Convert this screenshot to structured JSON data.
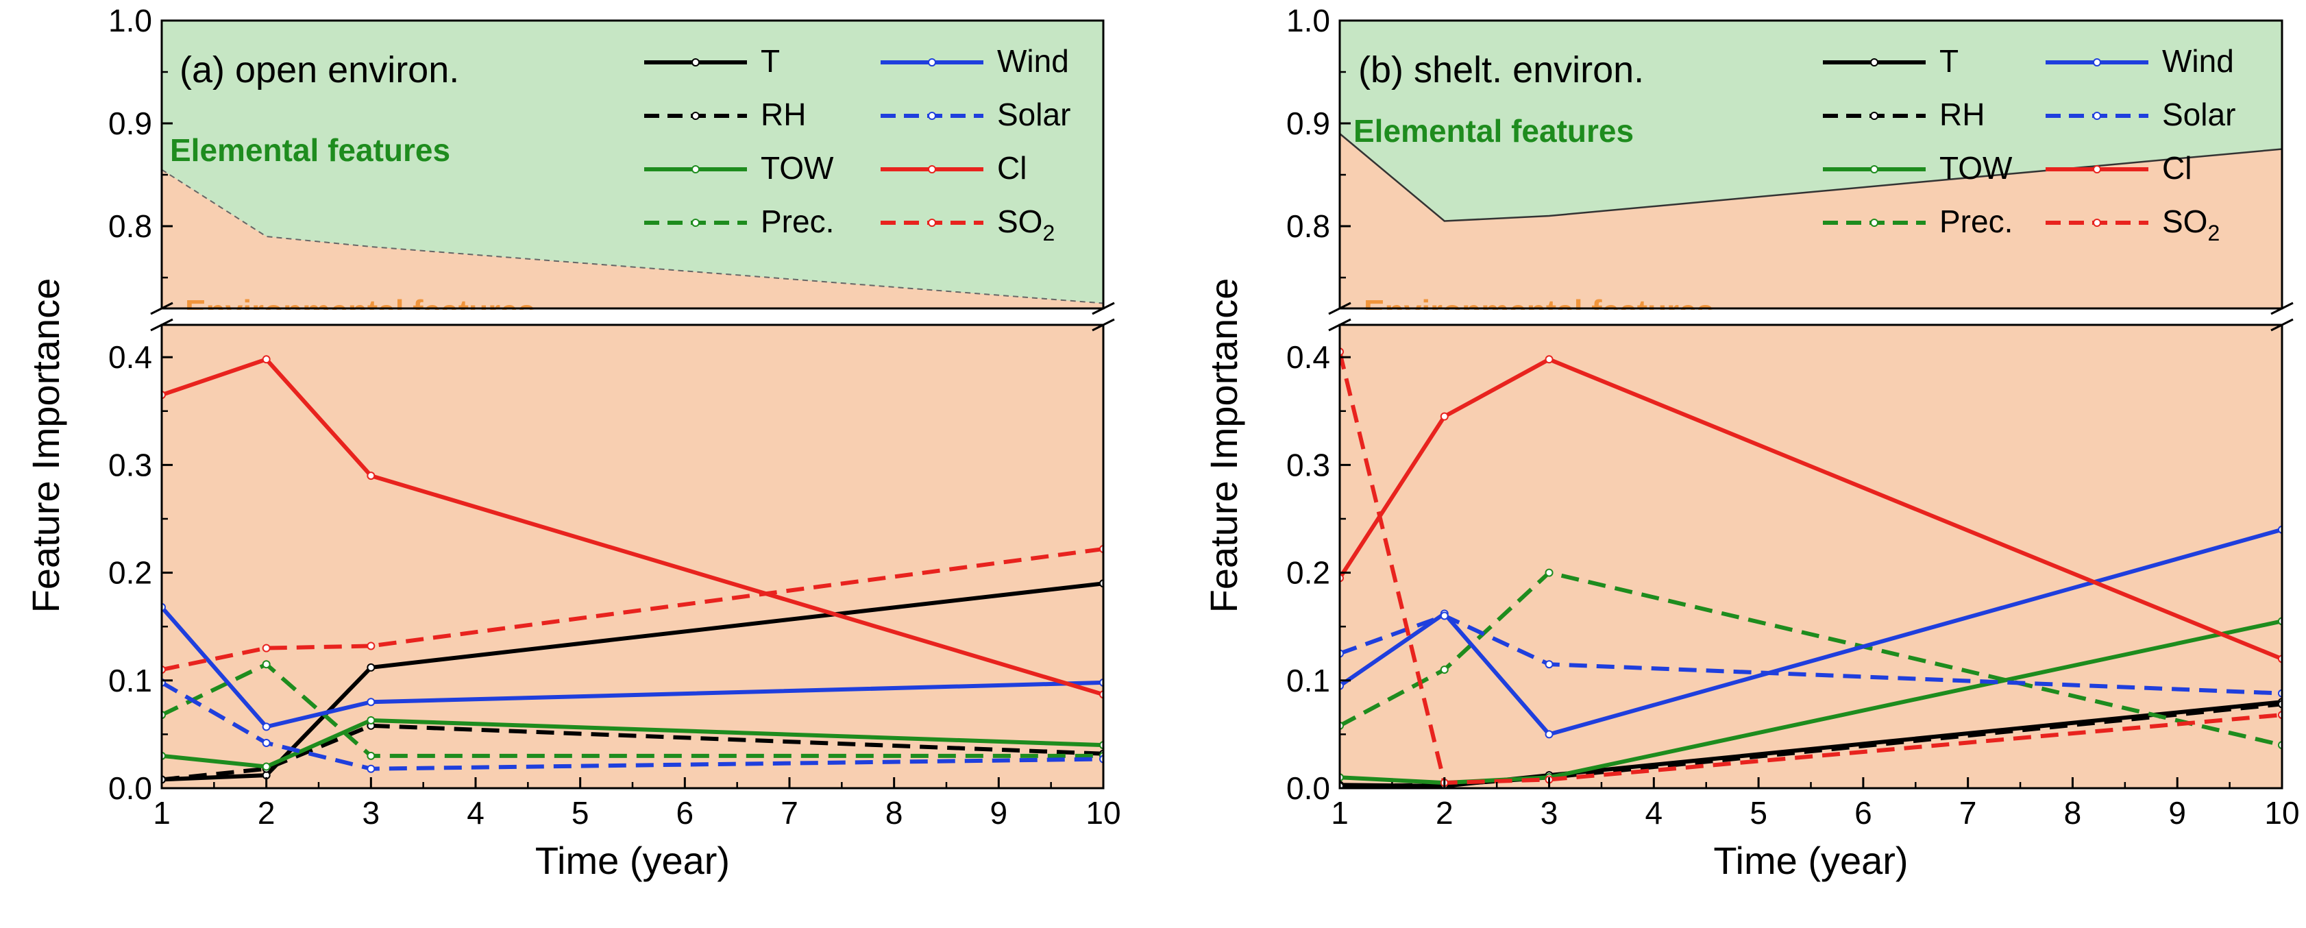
{
  "chart_data": [
    {
      "type": "line",
      "panel": "a",
      "title": "(a) open environ.",
      "xlabel": "Time (year)",
      "ylabel": "Feature Importance",
      "x": [
        1,
        2,
        3,
        10
      ],
      "xticks": [
        "1",
        "2",
        "3",
        "4",
        "5",
        "6",
        "7",
        "8",
        "9",
        "10"
      ],
      "lower_yticks": [
        "0.0",
        "0.1",
        "0.2",
        "0.3",
        "0.4"
      ],
      "upper_yticks": [
        "0.8",
        "0.9",
        "1.0"
      ],
      "lower_ylim": [
        0,
        0.43
      ],
      "upper_ylim": [
        0.72,
        1.0
      ],
      "regions": {
        "elemental": {
          "label": "Elemental features",
          "color": "#c6e6c4"
        },
        "environmental": {
          "label": "Environmental features",
          "color": "#f8cfb1"
        }
      },
      "boundary": {
        "x": [
          1,
          2,
          3,
          10
        ],
        "y": [
          0.855,
          0.79,
          0.78,
          0.725
        ],
        "style": "dashed"
      },
      "series": [
        {
          "name": "T",
          "color": "#000000",
          "dash": "solid",
          "values": [
            0.008,
            0.012,
            0.112,
            0.19
          ]
        },
        {
          "name": "RH",
          "color": "#000000",
          "dash": "dashed",
          "values": [
            0.008,
            0.018,
            0.058,
            0.032
          ]
        },
        {
          "name": "TOW",
          "color": "#1e8c1e",
          "dash": "solid",
          "values": [
            0.03,
            0.02,
            0.063,
            0.04
          ]
        },
        {
          "name": "Prec.",
          "color": "#1e8c1e",
          "dash": "dashed",
          "values": [
            0.068,
            0.115,
            0.03,
            0.03
          ]
        },
        {
          "name": "Wind",
          "color": "#1f3fdd",
          "dash": "solid",
          "values": [
            0.168,
            0.057,
            0.08,
            0.098
          ]
        },
        {
          "name": "Solar",
          "color": "#1f3fdd",
          "dash": "dashed",
          "values": [
            0.098,
            0.042,
            0.018,
            0.027
          ]
        },
        {
          "name": "Cl",
          "color": "#e8231e",
          "dash": "solid",
          "values": [
            0.365,
            0.398,
            0.29,
            0.087
          ]
        },
        {
          "name": "SO",
          "sub": "2",
          "color": "#e8231e",
          "dash": "dashed",
          "values": [
            0.11,
            0.13,
            0.132,
            0.222
          ]
        }
      ]
    },
    {
      "type": "line",
      "panel": "b",
      "title": "(b) shelt. environ.",
      "xlabel": "Time (year)",
      "ylabel": "Feature Importance",
      "x": [
        1,
        2,
        3,
        10
      ],
      "xticks": [
        "1",
        "2",
        "3",
        "4",
        "5",
        "6",
        "7",
        "8",
        "9",
        "10"
      ],
      "lower_yticks": [
        "0.0",
        "0.1",
        "0.2",
        "0.3",
        "0.4"
      ],
      "upper_yticks": [
        "0.8",
        "0.9",
        "1.0"
      ],
      "lower_ylim": [
        0,
        0.43
      ],
      "upper_ylim": [
        0.72,
        1.0
      ],
      "regions": {
        "elemental": {
          "label": "Elemental features",
          "color": "#c6e6c4"
        },
        "environmental": {
          "label": "Environmental features",
          "color": "#f8cfb1"
        }
      },
      "boundary": {
        "x": [
          1,
          2,
          3,
          10
        ],
        "y": [
          0.89,
          0.805,
          0.81,
          0.875
        ],
        "style": "solid"
      },
      "series": [
        {
          "name": "T",
          "color": "#000000",
          "dash": "solid",
          "values": [
            0.003,
            0.002,
            0.012,
            0.08
          ]
        },
        {
          "name": "RH",
          "color": "#000000",
          "dash": "dashed",
          "values": [
            0.002,
            0.003,
            0.01,
            0.078
          ]
        },
        {
          "name": "TOW",
          "color": "#1e8c1e",
          "dash": "solid",
          "values": [
            0.01,
            0.005,
            0.01,
            0.155
          ]
        },
        {
          "name": "Prec.",
          "color": "#1e8c1e",
          "dash": "dashed",
          "values": [
            0.058,
            0.11,
            0.2,
            0.04
          ]
        },
        {
          "name": "Wind",
          "color": "#1f3fdd",
          "dash": "solid",
          "values": [
            0.095,
            0.162,
            0.05,
            0.24
          ]
        },
        {
          "name": "Solar",
          "color": "#1f3fdd",
          "dash": "dashed",
          "values": [
            0.125,
            0.16,
            0.115,
            0.088
          ]
        },
        {
          "name": "Cl",
          "color": "#e8231e",
          "dash": "solid",
          "values": [
            0.195,
            0.345,
            0.398,
            0.12
          ]
        },
        {
          "name": "SO",
          "sub": "2",
          "color": "#e8231e",
          "dash": "dashed",
          "values": [
            0.405,
            0.005,
            0.008,
            0.068
          ]
        }
      ]
    }
  ]
}
